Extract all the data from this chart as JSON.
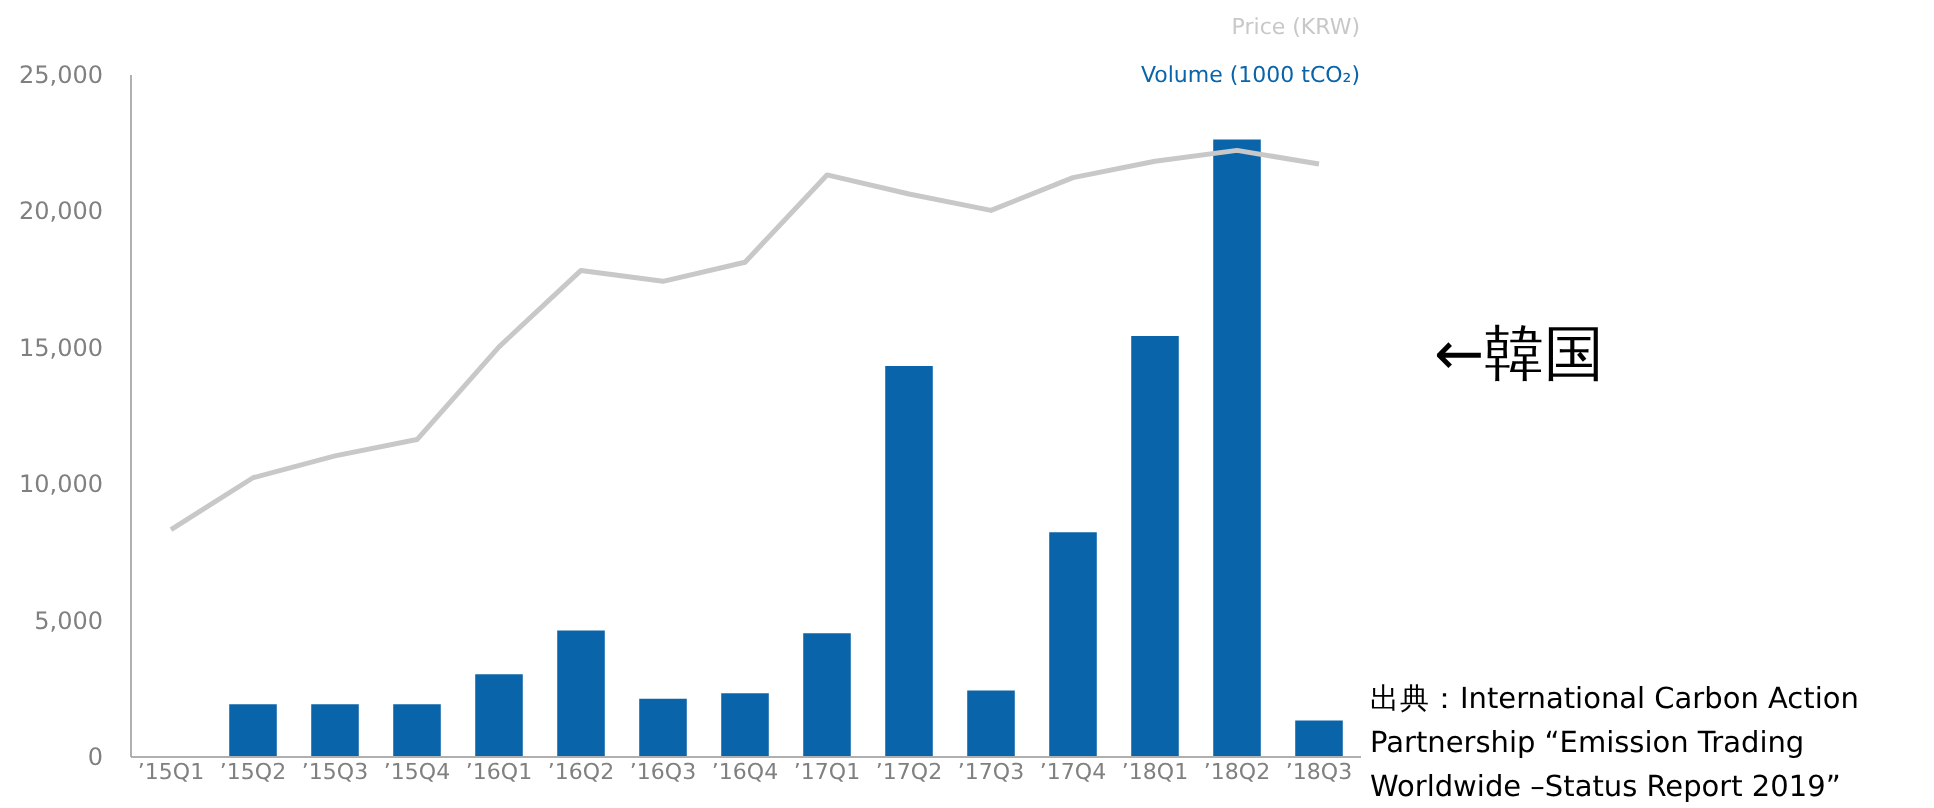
{
  "chart_data": {
    "type": "bar",
    "categories": [
      "’15Q1",
      "’15Q2",
      "’15Q3",
      "’15Q4",
      "’16Q1",
      "’16Q2",
      "’16Q3",
      "’16Q4",
      "’17Q1",
      "’17Q2",
      "’17Q3",
      "’17Q4",
      "’18Q1",
      "’18Q2",
      "’18Q3"
    ],
    "series": [
      {
        "name": "Volume (1000 tCO₂)",
        "color": "#0a64aa",
        "values": [
          null,
          1900,
          1900,
          1900,
          3000,
          4600,
          2100,
          2300,
          4500,
          14300,
          2400,
          8200,
          15400,
          22600,
          1300
        ]
      },
      {
        "name": "Price (KRW)",
        "type": "line",
        "color": "#c8c8c8",
        "values": [
          8300,
          10200,
          11000,
          11600,
          15000,
          17800,
          17400,
          18100,
          21300,
          20600,
          20000,
          21200,
          21800,
          22200,
          21700
        ]
      }
    ],
    "ylim": [
      0,
      25000
    ],
    "yticks": [
      {
        "value": 0,
        "label": "0"
      },
      {
        "value": 5000,
        "label": "5,000"
      },
      {
        "value": 10000,
        "label": "10,000"
      },
      {
        "value": 15000,
        "label": "15,000"
      },
      {
        "value": 20000,
        "label": "20,000"
      },
      {
        "value": 25000,
        "label": "25,000"
      }
    ],
    "grid": false,
    "legend": "top right",
    "annotations": [
      "←韓国",
      "出典：International Carbon Action Partnership “Emission Trading Worldwide –Status Report 2019”"
    ]
  }
}
